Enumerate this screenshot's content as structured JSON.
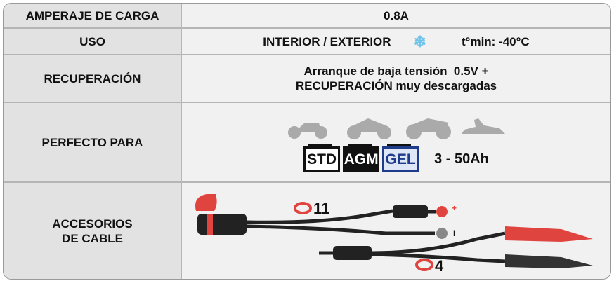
{
  "table": {
    "rows": [
      {
        "label": [
          "AMPERAJE DE CARGA"
        ],
        "content": [
          "0.8A"
        ]
      },
      {
        "label": [
          "USO"
        ],
        "content": [
          "INTERIOR / EXTERIOR",
          "t°min: -40°C"
        ]
      },
      {
        "label": [
          "RECUPERACIÓN"
        ],
        "content": [
          "Arranque de baja tensión  0.5V +",
          "RECUPERACIÓN muy descargadas"
        ]
      },
      {
        "label": [
          "PERFECTO PARA"
        ],
        "content": [
          "STD",
          "AGM",
          "GEL",
          "3 - 50Ah"
        ]
      },
      {
        "label": [
          "ACCESORIOS",
          "DE CABLE"
        ],
        "content": [
          "11",
          "4",
          "+",
          "I"
        ]
      }
    ]
  }
}
